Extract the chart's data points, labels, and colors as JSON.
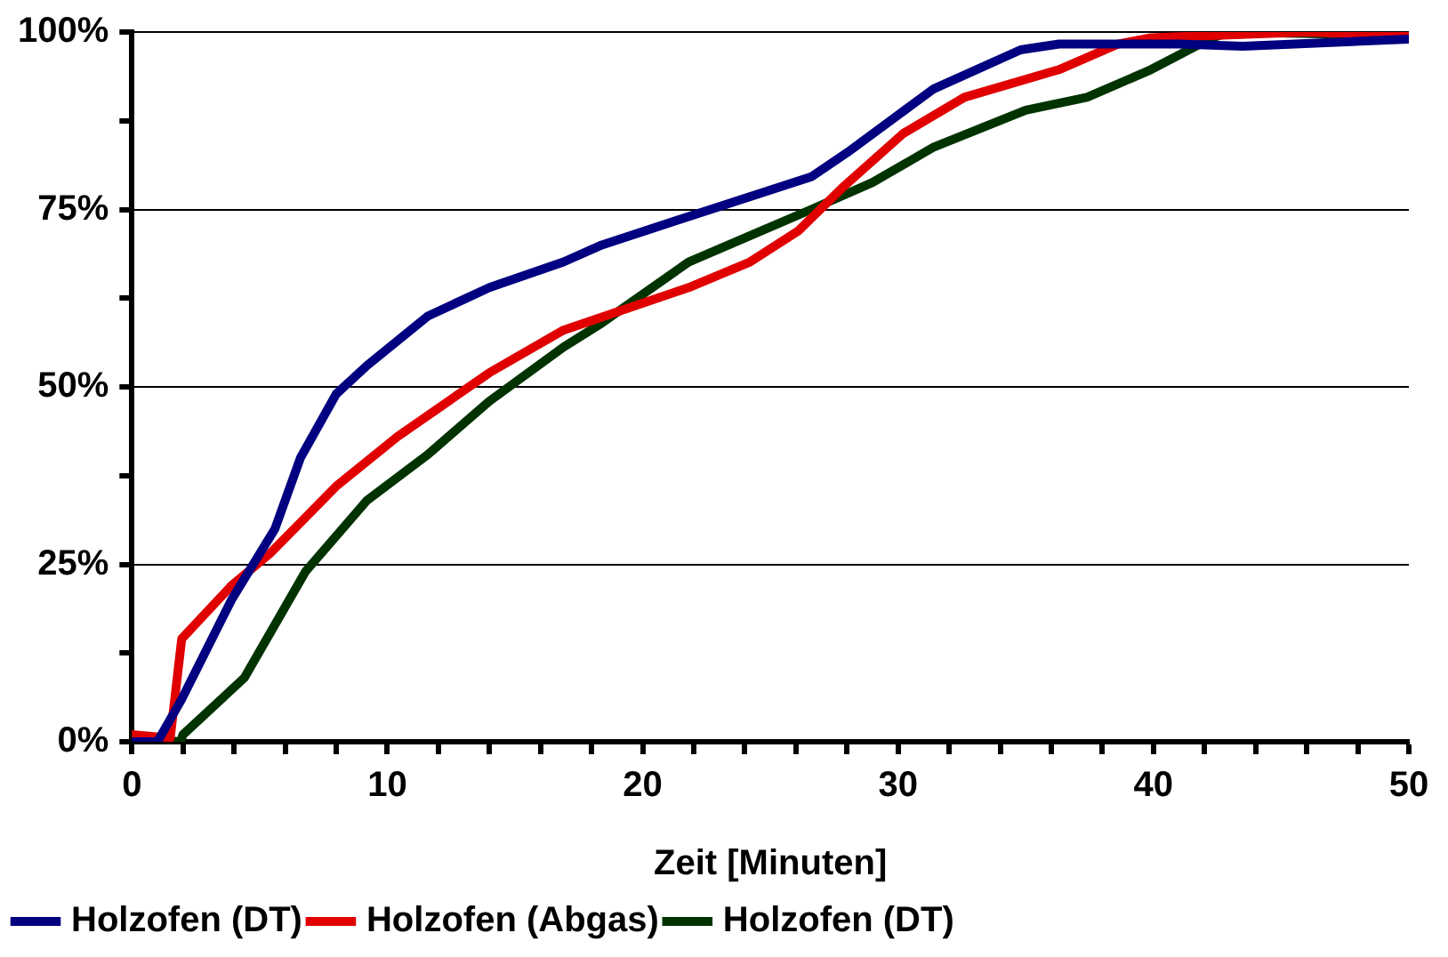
{
  "chart_data": {
    "type": "line",
    "xlabel": "Zeit [Minuten]",
    "xlim": [
      0,
      50
    ],
    "xticks": [
      0,
      {
        "value": 2,
        "label": null
      },
      {
        "value": 4,
        "label": null
      },
      {
        "value": 6,
        "label": null
      },
      {
        "value": 8,
        "label": null
      },
      10,
      {
        "value": 12,
        "label": null
      },
      {
        "value": 14,
        "label": null
      },
      {
        "value": 16,
        "label": null
      },
      {
        "value": 18,
        "label": null
      },
      20,
      {
        "value": 22,
        "label": null
      },
      {
        "value": 24,
        "label": null
      },
      {
        "value": 26,
        "label": null
      },
      {
        "value": 28,
        "label": null
      },
      30,
      {
        "value": 32,
        "label": null
      },
      {
        "value": 34,
        "label": null
      },
      {
        "value": 36,
        "label": null
      },
      {
        "value": 38,
        "label": null
      },
      40,
      {
        "value": 42,
        "label": null
      },
      {
        "value": 44,
        "label": null
      },
      {
        "value": 46,
        "label": null
      },
      {
        "value": 48,
        "label": null
      },
      50
    ],
    "ylim": [
      0,
      100
    ],
    "yticks": [
      {
        "value": 0,
        "label": "0%"
      },
      {
        "value": 12.5,
        "label": null
      },
      {
        "value": 25,
        "label": "25%"
      },
      {
        "value": 37.5,
        "label": null
      },
      {
        "value": 50,
        "label": "50%"
      },
      {
        "value": 62.5,
        "label": null
      },
      {
        "value": 75,
        "label": "75%"
      },
      {
        "value": 87.5,
        "label": null
      },
      {
        "value": 100,
        "label": "100%"
      }
    ],
    "grid": "y",
    "legend": "bottom",
    "marker": "none",
    "line_style": "solid",
    "series": [
      {
        "name": "Holzofen (DT)",
        "color": "#000080",
        "x": [
          0,
          1,
          1.95,
          3.9,
          5.6,
          6.6,
          8,
          9.2,
          11.6,
          14,
          16.9,
          18.4,
          21.8,
          26.6,
          28,
          31.4,
          34.8,
          36.3,
          41,
          43.5,
          50
        ],
        "values": [
          0,
          0,
          6,
          20,
          30,
          40,
          49,
          53,
          60,
          64,
          67.6,
          70,
          74,
          79.6,
          83,
          92,
          97.5,
          98.3,
          98.3,
          98,
          99
        ]
      },
      {
        "name": "Holzofen (Abgas)",
        "color": "#e00000",
        "x": [
          0,
          1.5,
          1.95,
          3.9,
          5.4,
          8,
          10.4,
          14,
          16.9,
          21.8,
          24.2,
          26.1,
          27.8,
          30.2,
          32.6,
          36.3,
          38.6,
          39.9,
          46,
          50
        ],
        "values": [
          1,
          0.5,
          14.5,
          22,
          26.5,
          36,
          43,
          52,
          58,
          64,
          67.6,
          72,
          78,
          85.7,
          90.8,
          94.7,
          98.3,
          99.2,
          100,
          99.5
        ]
      },
      {
        "name": "Holzofen (DT)",
        "color": "#003300",
        "x": [
          0,
          1.9,
          2,
          4.4,
          6.8,
          9.2,
          11.6,
          14,
          16.9,
          18.4,
          21.8,
          26.6,
          29,
          31.4,
          35,
          37.4,
          39.9,
          42.3,
          43,
          50
        ],
        "values": [
          0.5,
          0,
          1,
          9,
          24,
          34,
          40.5,
          48,
          55.6,
          59,
          67.6,
          75,
          78.8,
          83.8,
          89,
          90.8,
          94.7,
          99.2,
          100,
          99.5
        ]
      }
    ]
  }
}
